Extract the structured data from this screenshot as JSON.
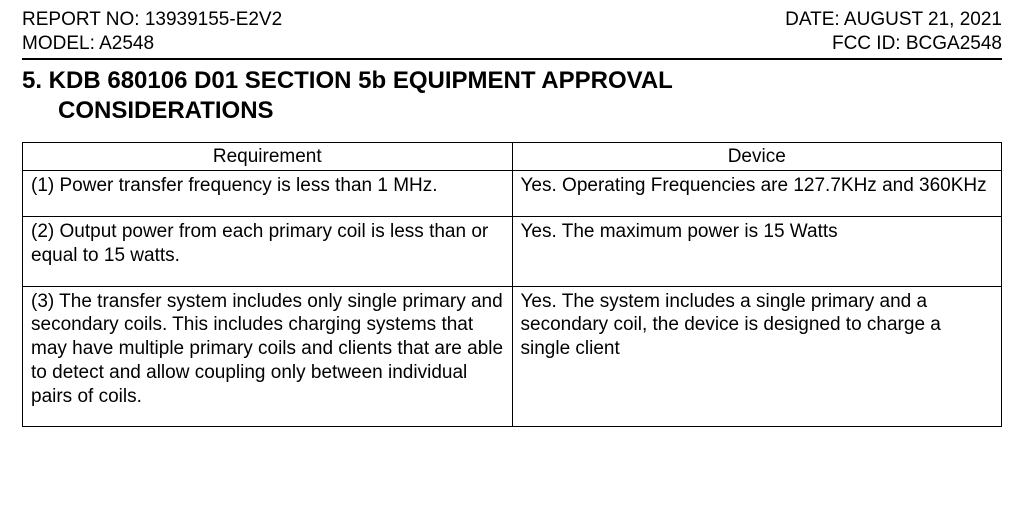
{
  "header": {
    "report_no_label": "REPORT NO: ",
    "report_no": "13939155-E2V2",
    "model_label": "MODEL: ",
    "model": "A2548",
    "date_label": "DATE: ",
    "date": "AUGUST 21, 2021",
    "fcc_id_label": "FCC ID: ",
    "fcc_id": "BCGA2548"
  },
  "section": {
    "number_and_line1": "5.  KDB 680106 D01 SECTION 5b EQUIPMENT APPROVAL",
    "line2": "CONSIDERATIONS"
  },
  "table": {
    "columns": [
      "Requirement",
      "Device"
    ],
    "rows": [
      {
        "requirement": "(1) Power transfer frequency is less than 1 MHz.",
        "device": "Yes. Operating Frequencies are 127.7KHz and 360KHz"
      },
      {
        "requirement": "(2) Output power from each primary coil is less than or equal to 15 watts.",
        "device": "Yes. The maximum power is 15 Watts"
      },
      {
        "requirement": "(3) The transfer system includes only single primary and secondary coils. This includes charging systems that may have multiple primary coils and clients that are able to detect and allow coupling only between individual pairs of coils.",
        "device": "Yes. The system includes a single primary and a secondary coil, the device is designed to charge a single client"
      }
    ]
  }
}
